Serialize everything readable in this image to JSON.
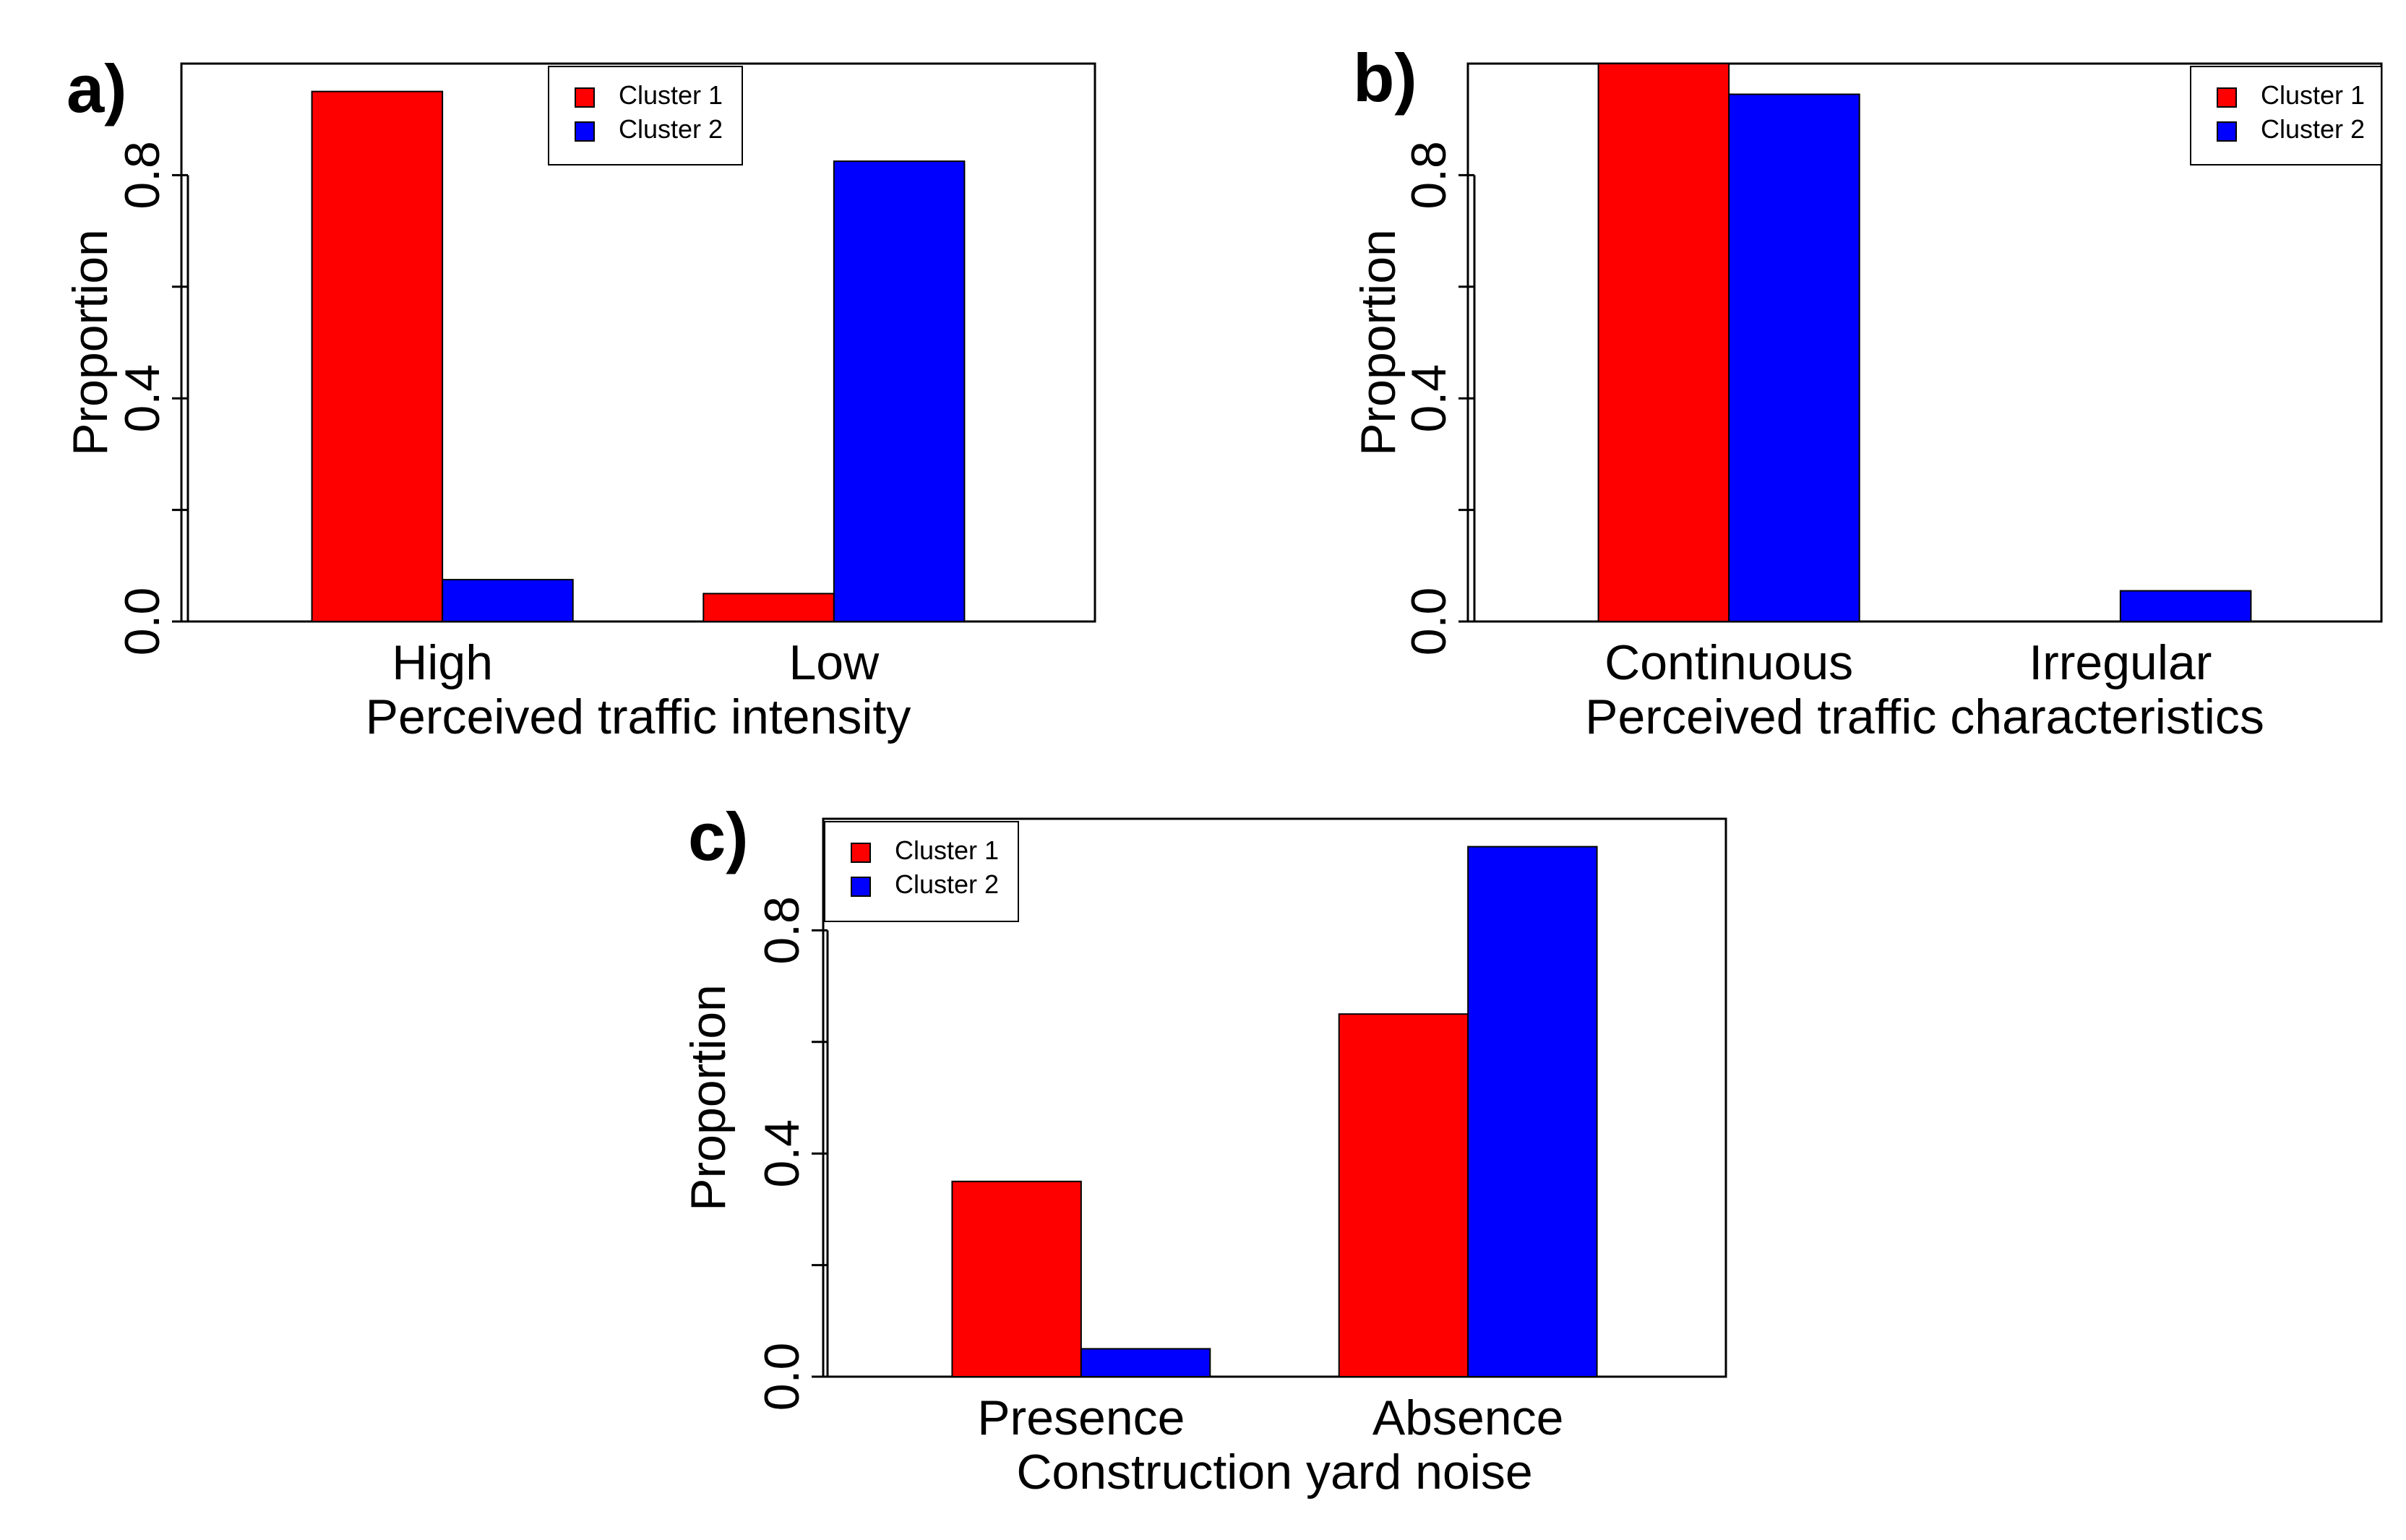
{
  "chart_data": [
    {
      "type": "bar",
      "panel_label": "a)",
      "title": "",
      "xlabel": "Perceived traffic intensity",
      "ylabel": "Proportion",
      "ylim": [
        0,
        1
      ],
      "yticks": [
        "0.0",
        "0.4",
        "0.8"
      ],
      "categories": [
        "High",
        "Low"
      ],
      "series": [
        {
          "name": "Cluster 1",
          "color": "#ff0000",
          "values": [
            0.95,
            0.05
          ]
        },
        {
          "name": "Cluster 2",
          "color": "#0000ff",
          "values": [
            0.075,
            0.825
          ]
        }
      ],
      "legend_position": "top-center"
    },
    {
      "type": "bar",
      "panel_label": "b)",
      "title": "",
      "xlabel": "Perceived traffic characteristics",
      "ylabel": "Proportion",
      "ylim": [
        0,
        1
      ],
      "yticks": [
        "0.0",
        "0.4",
        "0.8"
      ],
      "categories": [
        "Continuous",
        "Irregular"
      ],
      "series": [
        {
          "name": "Cluster 1",
          "color": "#ff0000",
          "values": [
            1.0,
            0.0
          ]
        },
        {
          "name": "Cluster 2",
          "color": "#0000ff",
          "values": [
            0.945,
            0.055
          ]
        }
      ],
      "legend_position": "top-right"
    },
    {
      "type": "bar",
      "panel_label": "c)",
      "title": "",
      "xlabel": "Construction yard noise",
      "ylabel": "Proportion",
      "ylim": [
        0,
        1
      ],
      "yticks": [
        "0.0",
        "0.4",
        "0.8"
      ],
      "categories": [
        "Presence",
        "Absence"
      ],
      "series": [
        {
          "name": "Cluster 1",
          "color": "#ff0000",
          "values": [
            0.35,
            0.65
          ]
        },
        {
          "name": "Cluster 2",
          "color": "#0000ff",
          "values": [
            0.05,
            0.95
          ]
        }
      ],
      "legend_position": "top-left"
    }
  ]
}
